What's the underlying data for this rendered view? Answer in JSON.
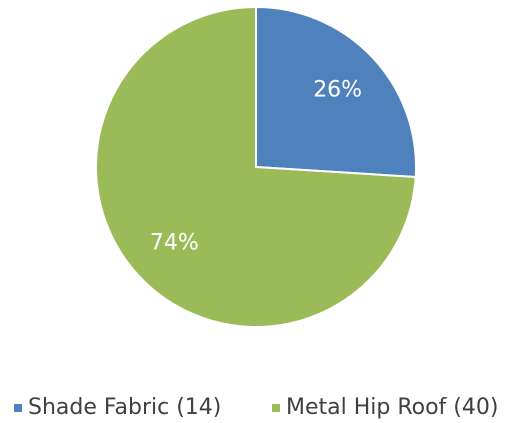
{
  "chart_data": {
    "type": "pie",
    "categories": [
      "Shade Fabric (14)",
      "Metal Hip Roof (40)"
    ],
    "values": [
      26,
      74
    ],
    "value_labels": [
      "26%",
      "74%"
    ],
    "colors": [
      "#4f81bd",
      "#9bbb59"
    ],
    "legend": "bottom"
  }
}
